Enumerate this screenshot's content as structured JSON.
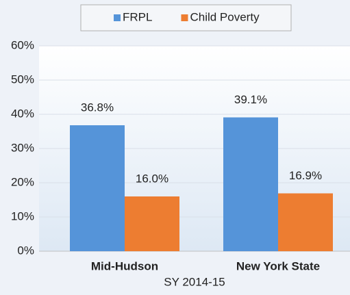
{
  "chart_data": {
    "type": "bar",
    "categories": [
      "Mid-Hudson",
      "New York State"
    ],
    "series": [
      {
        "name": "FRPL",
        "color": "#5594d9",
        "values": [
          36.8,
          39.1
        ],
        "value_labels": [
          "36.8%",
          "39.1%"
        ]
      },
      {
        "name": "Child Poverty",
        "color": "#ed7d31",
        "values": [
          16.0,
          16.9
        ],
        "value_labels": [
          "16.0%",
          "16.9%"
        ]
      }
    ],
    "x_label": "SY 2014-15",
    "ylim": [
      0,
      60
    ],
    "yticks": [
      {
        "value": 0,
        "label": "0%"
      },
      {
        "value": 10,
        "label": "10%"
      },
      {
        "value": 20,
        "label": "20%"
      },
      {
        "value": 30,
        "label": "30%"
      },
      {
        "value": 40,
        "label": "40%"
      },
      {
        "value": 50,
        "label": "50%"
      },
      {
        "value": 60,
        "label": "60%"
      }
    ],
    "grid": true,
    "legend": "top"
  }
}
